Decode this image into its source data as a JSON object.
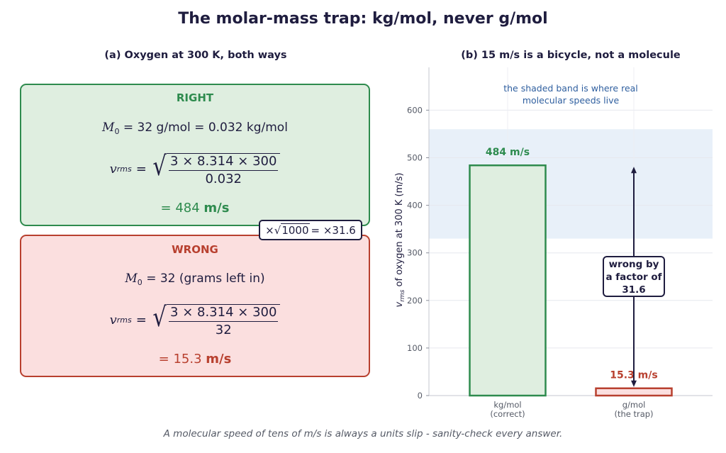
{
  "title": "The molar-mass trap: kg/mol, never g/mol",
  "footer": "A molecular speed of tens of m/s is always a units slip - sanity-check every answer.",
  "left_panel": {
    "title": "(a)  Oxygen at 300 K, both ways",
    "right_case": {
      "heading": "RIGHT",
      "mass_line": "= 32 g/mol  = 0.032 kg/mol",
      "numerator": "3 × 8.314 × 300",
      "denominator": "0.032",
      "result_value": "= 484",
      "result_unit": "m/s"
    },
    "wrong_case": {
      "heading": "WRONG",
      "mass_line": "= 32  (grams left in)",
      "numerator": "3 × 8.314 × 300",
      "denominator": "32",
      "result_value": "= 15.3",
      "result_unit": "m/s"
    },
    "symbol_M": "M",
    "symbol_M_sub": "0",
    "symbol_v": "v",
    "symbol_v_sub": "rms",
    "equals": "=",
    "factor_badge": {
      "prefix": "×√",
      "radicand": "1000",
      "suffix": " = ×31.6"
    }
  },
  "chart_data": {
    "type": "bar",
    "title": "(b)  15 m/s is a bicycle, not a molecule",
    "categories": [
      [
        "kg/mol",
        "(correct)"
      ],
      [
        "g/mol",
        "(the trap)"
      ]
    ],
    "values": [
      484,
      15.3
    ],
    "value_labels": [
      "484 m/s",
      "15.3 m/s"
    ],
    "colors": {
      "correct_fill": "#dfeee0",
      "correct_edge": "#2e8b4e",
      "trap_fill": "#fbdfdf",
      "trap_edge": "#b8402f",
      "band": "#e8f0f9",
      "arrow": "#1f1d3f"
    },
    "ylabel_symbol": "v",
    "ylabel_sub": "rms",
    "ylabel_rest": " of oxygen at 300 K  (m/s)",
    "ylim": [
      0,
      690
    ],
    "yticks": [
      0,
      100,
      200,
      300,
      400,
      500,
      600
    ],
    "band": [
      330,
      560
    ],
    "band_note": [
      "the shaded band is where real",
      "molecular speeds live"
    ],
    "annotation": {
      "lines": [
        "wrong by",
        "a factor of",
        "31.6"
      ],
      "arrow_from": 15.3,
      "arrow_to": 484
    },
    "grid": true
  }
}
